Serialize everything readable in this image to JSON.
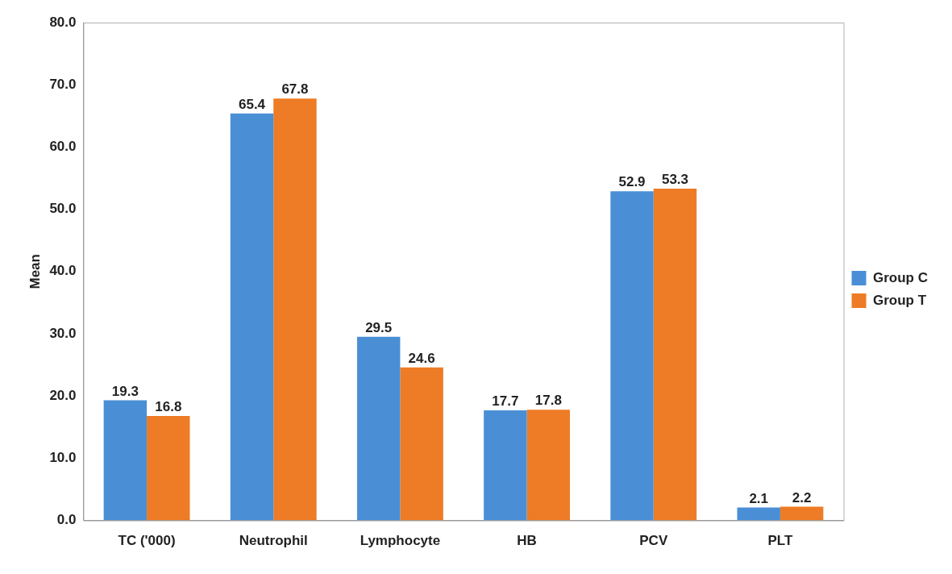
{
  "chart_data": {
    "type": "bar",
    "ylabel": "Mean",
    "categories": [
      "TC ('000)",
      "Neutrophil",
      "Lymphocyte",
      "HB",
      "PCV",
      "PLT"
    ],
    "series": [
      {
        "name": "Group C",
        "color": "#4a8fd6",
        "values": [
          19.3,
          65.4,
          29.5,
          17.7,
          52.9,
          2.1
        ]
      },
      {
        "name": "Group T",
        "color": "#ee7b25",
        "values": [
          16.8,
          67.8,
          24.6,
          17.8,
          53.3,
          2.2
        ]
      }
    ],
    "ylim": [
      0,
      80
    ],
    "yticks": [
      {
        "value": 0,
        "label": "0.0"
      },
      {
        "value": 10,
        "label": "10.0"
      },
      {
        "value": 20,
        "label": "20.0"
      },
      {
        "value": 30,
        "label": "30.0"
      },
      {
        "value": 40,
        "label": "40.0"
      },
      {
        "value": 50,
        "label": "50.0"
      },
      {
        "value": 60,
        "label": "60.0"
      },
      {
        "value": 70,
        "label": "70.0"
      },
      {
        "value": 80,
        "label": "80.0"
      }
    ],
    "grid": false,
    "legend": "right",
    "data_labels": true
  }
}
